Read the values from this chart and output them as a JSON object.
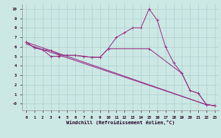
{
  "xlabel": "Windchill (Refroidissement éolien,°C)",
  "background_color": "#cce8e4",
  "grid_color": "#aacccc",
  "line_color": "#993388",
  "xlim": [
    -0.5,
    23.5
  ],
  "ylim": [
    -0.7,
    10.5
  ],
  "xticks": [
    0,
    1,
    2,
    3,
    4,
    5,
    6,
    7,
    8,
    9,
    10,
    11,
    12,
    13,
    14,
    15,
    16,
    17,
    18,
    19,
    20,
    21,
    22,
    23
  ],
  "yticks": [
    0,
    1,
    2,
    3,
    4,
    5,
    6,
    7,
    8,
    9,
    10
  ],
  "series": [
    {
      "x": [
        0,
        1,
        2,
        3,
        4,
        5,
        6,
        7,
        8,
        9,
        10,
        11,
        12,
        13,
        14,
        15,
        16,
        17,
        18,
        19,
        20,
        21,
        22,
        23
      ],
      "y": [
        6.5,
        5.9,
        5.7,
        5.6,
        5.2,
        5.1,
        5.1,
        5.0,
        4.9,
        4.9,
        5.8,
        7.0,
        7.5,
        8.0,
        8.0,
        10.0,
        8.8,
        6.0,
        4.3,
        3.2,
        1.4,
        1.1,
        -0.1,
        -0.2
      ]
    },
    {
      "x": [
        0,
        1,
        2,
        3,
        4,
        5,
        6,
        7,
        8,
        9,
        10,
        15,
        19,
        20,
        21,
        22,
        23
      ],
      "y": [
        6.5,
        5.9,
        5.7,
        5.0,
        5.0,
        5.1,
        5.1,
        5.0,
        4.9,
        4.9,
        5.8,
        5.8,
        3.2,
        1.4,
        1.1,
        -0.1,
        -0.2
      ]
    },
    {
      "x": [
        0,
        22,
        23
      ],
      "y": [
        6.5,
        -0.1,
        -0.2
      ]
    },
    {
      "x": [
        0,
        22,
        23
      ],
      "y": [
        6.3,
        -0.1,
        -0.2
      ]
    }
  ]
}
